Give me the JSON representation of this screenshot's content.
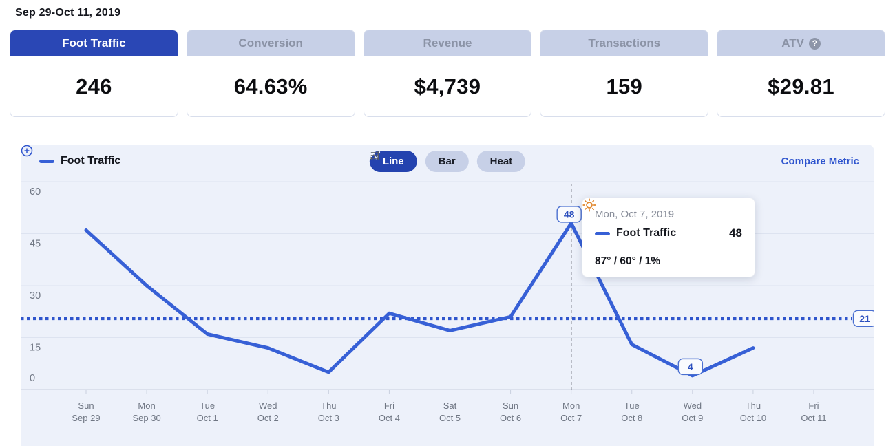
{
  "header": {
    "date_range": "Sep 29-Oct 11, 2019"
  },
  "cards": [
    {
      "label": "Foot Traffic",
      "value": "246",
      "selected": true
    },
    {
      "label": "Conversion",
      "value": "64.63%",
      "selected": false
    },
    {
      "label": "Revenue",
      "value": "$4,739",
      "selected": false
    },
    {
      "label": "Transactions",
      "value": "159",
      "selected": false
    },
    {
      "label": "ATV",
      "value": "$29.81",
      "selected": false,
      "help_icon": "?"
    }
  ],
  "chart_panel": {
    "legend_label": "Foot Traffic",
    "toggles": {
      "line": "Line",
      "bar": "Bar",
      "heat": "Heat"
    },
    "compare_label": "Compare Metric",
    "tooltip": {
      "date": "Mon, Oct 7, 2019",
      "series": "Foot Traffic",
      "value": "48",
      "weather": "87° / 60° / 1%"
    }
  },
  "chart_data": {
    "type": "line",
    "series_name": "Foot Traffic",
    "categories": [
      {
        "day": "Sun",
        "date": "Sep 29"
      },
      {
        "day": "Mon",
        "date": "Sep 30"
      },
      {
        "day": "Tue",
        "date": "Oct 1"
      },
      {
        "day": "Wed",
        "date": "Oct 2"
      },
      {
        "day": "Thu",
        "date": "Oct 3"
      },
      {
        "day": "Fri",
        "date": "Oct 4"
      },
      {
        "day": "Sat",
        "date": "Oct 5"
      },
      {
        "day": "Sun",
        "date": "Oct 6"
      },
      {
        "day": "Mon",
        "date": "Oct 7"
      },
      {
        "day": "Tue",
        "date": "Oct 8"
      },
      {
        "day": "Wed",
        "date": "Oct 9"
      },
      {
        "day": "Thu",
        "date": "Oct 10"
      },
      {
        "day": "Fri",
        "date": "Oct 11"
      }
    ],
    "values": [
      46,
      30,
      16,
      12,
      5,
      22,
      17,
      21,
      48,
      13,
      4,
      12,
      null
    ],
    "ylim": [
      0,
      60
    ],
    "yticks": [
      0,
      15,
      30,
      45,
      60
    ],
    "grid": true,
    "average_value": 20.5,
    "average_label": "21",
    "annotations": [
      {
        "index": 8,
        "label": "48"
      },
      {
        "index": 10,
        "label": "4"
      }
    ],
    "highlight_index": 8,
    "colors": {
      "line": "#3760d6",
      "average_line": "#2f55cc",
      "badge_border": "#4a6fd0",
      "badge_text": "#2c4fbe",
      "gridline": "#dde3f0",
      "axis": "#c9d0df",
      "tick_label": "#6f7683",
      "crosshair": "#2a2e37"
    }
  }
}
